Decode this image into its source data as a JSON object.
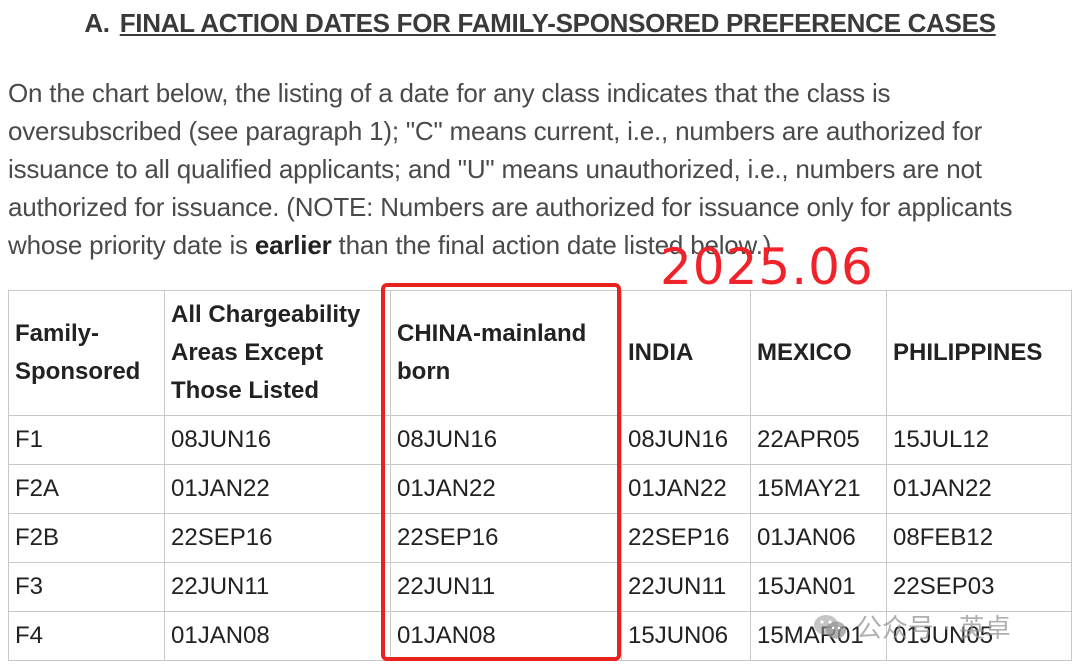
{
  "heading": {
    "prefix": "A.",
    "title": "FINAL ACTION DATES FOR FAMILY-SPONSORED PREFERENCE CASES"
  },
  "intro": {
    "part1": "On the chart below, the listing of a date for any class indicates that the class is oversubscribed (see paragraph 1); \"C\" means current, i.e., numbers are authorized for issuance to all qualified applicants; and \"U\" means unauthorized, i.e., numbers are not authorized for issuance. (NOTE: Numbers are authorized for issuance only for applicants whose priority date is ",
    "bold": "earlier",
    "part2": " than the final action date listed below.)"
  },
  "stamp": "2025.06",
  "table": {
    "headers": [
      "Family-Sponsored",
      "All Chargeability Areas Except Those Listed",
      "CHINA-mainland born",
      "INDIA",
      "MEXICO",
      "PHILIPPINES"
    ],
    "rows": [
      [
        "F1",
        "08JUN16",
        "08JUN16",
        "08JUN16",
        "22APR05",
        "15JUL12"
      ],
      [
        "F2A",
        "01JAN22",
        "01JAN22",
        "01JAN22",
        "15MAY21",
        "01JAN22"
      ],
      [
        "F2B",
        "22SEP16",
        "22SEP16",
        "22SEP16",
        "01JAN06",
        "08FEB12"
      ],
      [
        "F3",
        "22JUN11",
        "22JUN11",
        "22JUN11",
        "15JAN01",
        "22SEP03"
      ],
      [
        "F4",
        "01JAN08",
        "01JAN08",
        "15JUN06",
        "15MAR01",
        "01JUN05"
      ]
    ]
  },
  "watermark": "公众号 · 英卓",
  "colors": {
    "highlight": "#e8231f",
    "stamp": "#f0232a"
  },
  "icons": {
    "watermark": "wechat-icon"
  }
}
